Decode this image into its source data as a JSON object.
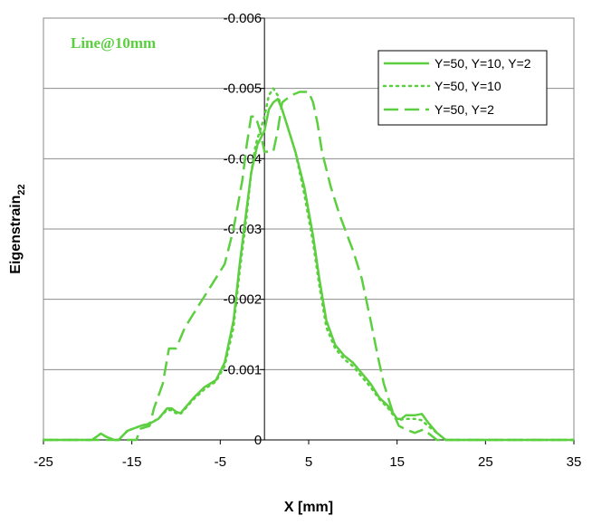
{
  "chart_data": {
    "type": "line",
    "annotation": "Line@10mm",
    "xlabel": "X [mm]",
    "ylabel": {
      "main": "Eigenstrain",
      "sub": "22"
    },
    "xlim": [
      -25,
      35
    ],
    "ylim": [
      -0.006,
      0
    ],
    "y_inverted": true,
    "grid": "horizontal",
    "legend_position": "top-right",
    "line_color": "#5ccf40",
    "x_ticks": [
      -25,
      -15,
      -5,
      5,
      15,
      25,
      35
    ],
    "x_tick_labels": [
      "-25",
      "-15",
      "-5",
      "5",
      "15",
      "25",
      "35"
    ],
    "y_ticks": [
      0,
      -0.001,
      -0.002,
      -0.003,
      -0.004,
      -0.005,
      -0.006
    ],
    "y_tick_labels": [
      "0",
      "-0.001",
      "-0.002",
      "-0.003",
      "-0.004",
      "-0.005",
      "-0.006"
    ],
    "series": [
      {
        "name": "Y=50, Y=10, Y=2",
        "style": "solid",
        "points": [
          [
            -25,
            0
          ],
          [
            -19.5,
            0
          ],
          [
            -18.5,
            -9e-05
          ],
          [
            -18,
            -5e-05
          ],
          [
            -17,
            0
          ],
          [
            -16.5,
            0
          ],
          [
            -15.5,
            -0.00013
          ],
          [
            -14,
            -0.0002
          ],
          [
            -13,
            -0.00023
          ],
          [
            -12,
            -0.0003
          ],
          [
            -11,
            -0.00045
          ],
          [
            -10.5,
            -0.00045
          ],
          [
            -10,
            -0.0004
          ],
          [
            -9.5,
            -0.00038
          ],
          [
            -8,
            -0.0006
          ],
          [
            -6.8,
            -0.00075
          ],
          [
            -5.5,
            -0.00085
          ],
          [
            -4.5,
            -0.0011
          ],
          [
            -3.5,
            -0.0017
          ],
          [
            -2.8,
            -0.0025
          ],
          [
            -2,
            -0.0033
          ],
          [
            -1.5,
            -0.0038
          ],
          [
            -0.8,
            -0.0042
          ],
          [
            0,
            -0.0044
          ],
          [
            0.5,
            -0.0047
          ],
          [
            1,
            -0.0048
          ],
          [
            1.5,
            -0.00485
          ],
          [
            2,
            -0.0047
          ],
          [
            2.5,
            -0.0045
          ],
          [
            3.5,
            -0.0041
          ],
          [
            4.5,
            -0.0036
          ],
          [
            5.5,
            -0.0029
          ],
          [
            6.2,
            -0.0023
          ],
          [
            7,
            -0.0017
          ],
          [
            8,
            -0.00135
          ],
          [
            9,
            -0.0012
          ],
          [
            10,
            -0.0011
          ],
          [
            11,
            -0.00095
          ],
          [
            12,
            -0.0008
          ],
          [
            13,
            -0.0006
          ],
          [
            14,
            -0.00048
          ],
          [
            15,
            -0.0003
          ],
          [
            15.5,
            -0.0003
          ],
          [
            16,
            -0.00035
          ],
          [
            17,
            -0.00035
          ],
          [
            17.8,
            -0.00037
          ],
          [
            18.5,
            -0.00025
          ],
          [
            19.5,
            -0.0001
          ],
          [
            20.5,
            0
          ],
          [
            35,
            0
          ]
        ]
      },
      {
        "name": "Y=50, Y=10",
        "style": "dotted",
        "points": [
          [
            -25,
            0
          ],
          [
            -19.5,
            0
          ],
          [
            -18.5,
            -9e-05
          ],
          [
            -18,
            -5e-05
          ],
          [
            -17,
            0
          ],
          [
            -16.5,
            0
          ],
          [
            -15.5,
            -0.00013
          ],
          [
            -14,
            -0.0002
          ],
          [
            -13,
            -0.00024
          ],
          [
            -12,
            -0.0003
          ],
          [
            -11,
            -0.00043
          ],
          [
            -10.5,
            -0.00042
          ],
          [
            -10,
            -0.00038
          ],
          [
            -9.5,
            -0.00037
          ],
          [
            -8,
            -0.00058
          ],
          [
            -6.8,
            -0.00072
          ],
          [
            -5.5,
            -0.00083
          ],
          [
            -4.5,
            -0.00105
          ],
          [
            -3.5,
            -0.0016
          ],
          [
            -2.8,
            -0.0024
          ],
          [
            -2,
            -0.0032
          ],
          [
            -1.5,
            -0.0038
          ],
          [
            -1,
            -0.0042
          ],
          [
            0,
            -0.0046
          ],
          [
            0.5,
            -0.0049
          ],
          [
            1,
            -0.005
          ],
          [
            1.5,
            -0.0049
          ],
          [
            2,
            -0.0047
          ],
          [
            2.5,
            -0.0045
          ],
          [
            3.5,
            -0.0041
          ],
          [
            4.5,
            -0.0035
          ],
          [
            5.5,
            -0.0028
          ],
          [
            6.2,
            -0.0022
          ],
          [
            7,
            -0.0016
          ],
          [
            8,
            -0.0013
          ],
          [
            9,
            -0.00115
          ],
          [
            10,
            -0.00105
          ],
          [
            11,
            -0.0009
          ],
          [
            12,
            -0.00075
          ],
          [
            13,
            -0.00058
          ],
          [
            14,
            -0.00045
          ],
          [
            15,
            -0.00028
          ],
          [
            16,
            -0.0003
          ],
          [
            17,
            -0.0003
          ],
          [
            17.8,
            -0.00028
          ],
          [
            18.5,
            -0.0002
          ],
          [
            19.5,
            -0.0001
          ],
          [
            20.5,
            0
          ],
          [
            35,
            0
          ]
        ]
      },
      {
        "name": "Y=50, Y=2",
        "style": "dashed",
        "points": [
          [
            -25,
            0
          ],
          [
            -14.5,
            0
          ],
          [
            -14,
            -0.00016
          ],
          [
            -13,
            -0.0002
          ],
          [
            -12.5,
            -0.00045
          ],
          [
            -11.5,
            -0.0008
          ],
          [
            -10.8,
            -0.0013
          ],
          [
            -10,
            -0.0013
          ],
          [
            -9,
            -0.0016
          ],
          [
            -7.5,
            -0.0019
          ],
          [
            -6,
            -0.0022
          ],
          [
            -4.5,
            -0.0025
          ],
          [
            -3.5,
            -0.003
          ],
          [
            -2.5,
            -0.0037
          ],
          [
            -2,
            -0.0042
          ],
          [
            -1.5,
            -0.0046
          ],
          [
            -1,
            -0.0046
          ],
          [
            -0.5,
            -0.0044
          ],
          [
            0,
            -0.0041
          ],
          [
            1,
            -0.0041
          ],
          [
            1.5,
            -0.0044
          ],
          [
            2,
            -0.0048
          ],
          [
            3,
            -0.0049
          ],
          [
            4,
            -0.00495
          ],
          [
            5,
            -0.00495
          ],
          [
            5.5,
            -0.0048
          ],
          [
            6,
            -0.0045
          ],
          [
            6.5,
            -0.0041
          ],
          [
            7.5,
            -0.0036
          ],
          [
            8.5,
            -0.0032
          ],
          [
            10,
            -0.0027
          ],
          [
            11,
            -0.0023
          ],
          [
            12,
            -0.0017
          ],
          [
            12.8,
            -0.0012
          ],
          [
            13.5,
            -0.0008
          ],
          [
            14.5,
            -0.0004
          ],
          [
            15.2,
            -0.0002
          ],
          [
            16,
            -0.00015
          ],
          [
            17,
            -0.0001
          ],
          [
            18,
            -0.00015
          ],
          [
            18.5,
            -0.0001
          ],
          [
            19.5,
            0
          ],
          [
            35,
            0
          ]
        ]
      }
    ]
  }
}
